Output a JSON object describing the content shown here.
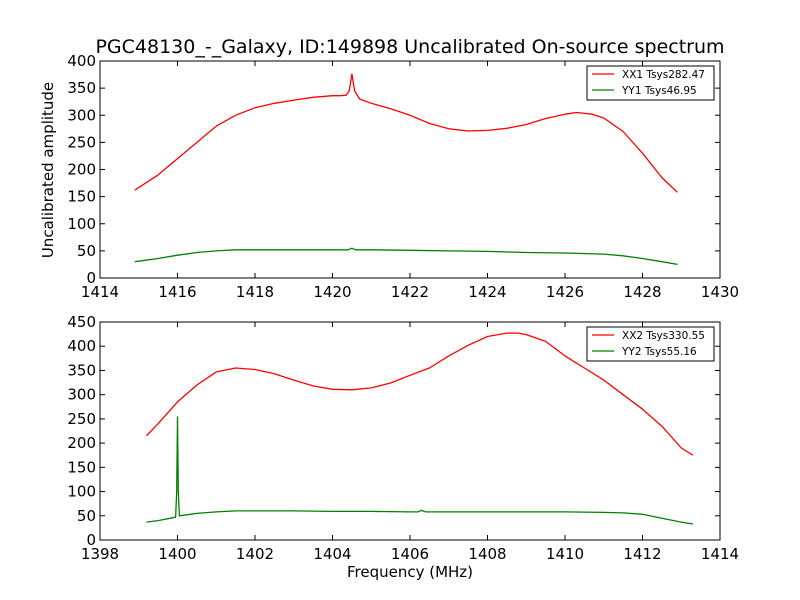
{
  "chart_data": [
    {
      "type": "line",
      "title": "PGC48130_-_Galaxy, ID:149898 Uncalibrated On-source spectrum",
      "xlabel": "",
      "ylabel": "Uncalibrated amplitude",
      "xlim": [
        1414,
        1430
      ],
      "ylim": [
        0,
        400
      ],
      "xticks": [
        "1414",
        "1416",
        "1418",
        "1420",
        "1422",
        "1424",
        "1426",
        "1428",
        "1430"
      ],
      "yticks": [
        "0",
        "50",
        "100",
        "150",
        "200",
        "250",
        "300",
        "350",
        "400"
      ],
      "legend_position": "top-right",
      "series": [
        {
          "name": "XX1 Tsys282.47",
          "color": "#ff0000",
          "points": [
            [
              1414.9,
              162
            ],
            [
              1415.5,
              190
            ],
            [
              1416,
              220
            ],
            [
              1416.5,
              250
            ],
            [
              1417,
              280
            ],
            [
              1417.5,
              300
            ],
            [
              1418,
              314
            ],
            [
              1418.5,
              322
            ],
            [
              1419,
              328
            ],
            [
              1419.5,
              333
            ],
            [
              1420,
              336
            ],
            [
              1420.2,
              336
            ],
            [
              1420.35,
              337
            ],
            [
              1420.43,
              345
            ],
            [
              1420.5,
              376
            ],
            [
              1420.57,
              345
            ],
            [
              1420.7,
              330
            ],
            [
              1421,
              322
            ],
            [
              1421.5,
              312
            ],
            [
              1422,
              300
            ],
            [
              1422.5,
              285
            ],
            [
              1423,
              275
            ],
            [
              1423.5,
              271
            ],
            [
              1424,
              272
            ],
            [
              1424.5,
              276
            ],
            [
              1425,
              283
            ],
            [
              1425.5,
              294
            ],
            [
              1426,
              302
            ],
            [
              1426.3,
              305
            ],
            [
              1426.7,
              302
            ],
            [
              1427,
              295
            ],
            [
              1427.5,
              270
            ],
            [
              1428,
              230
            ],
            [
              1428.5,
              185
            ],
            [
              1428.9,
              158
            ]
          ]
        },
        {
          "name": "YY1 Tsys46.95",
          "color": "#008000",
          "points": [
            [
              1414.9,
              30
            ],
            [
              1415.5,
              36
            ],
            [
              1416,
              42
            ],
            [
              1416.5,
              47
            ],
            [
              1417,
              50
            ],
            [
              1417.5,
              52
            ],
            [
              1418,
              52
            ],
            [
              1419,
              52
            ],
            [
              1420,
              52
            ],
            [
              1420.4,
              52
            ],
            [
              1420.5,
              55
            ],
            [
              1420.6,
              52
            ],
            [
              1421,
              52
            ],
            [
              1422,
              51
            ],
            [
              1423,
              50
            ],
            [
              1424,
              49
            ],
            [
              1425,
              47
            ],
            [
              1426,
              46
            ],
            [
              1427,
              44
            ],
            [
              1427.5,
              41
            ],
            [
              1428,
              36
            ],
            [
              1428.5,
              30
            ],
            [
              1428.9,
              25
            ]
          ]
        }
      ]
    },
    {
      "type": "line",
      "title": "",
      "xlabel": "Frequency (MHz)",
      "ylabel": "",
      "xlim": [
        1398,
        1414
      ],
      "ylim": [
        0,
        450
      ],
      "xticks": [
        "1398",
        "1400",
        "1402",
        "1404",
        "1406",
        "1408",
        "1410",
        "1412",
        "1414"
      ],
      "yticks": [
        "0",
        "50",
        "100",
        "150",
        "200",
        "250",
        "300",
        "350",
        "400",
        "450"
      ],
      "legend_position": "top-right",
      "series": [
        {
          "name": "XX2 Tsys330.55",
          "color": "#ff0000",
          "points": [
            [
              1399.2,
              215
            ],
            [
              1399.5,
              240
            ],
            [
              1400,
              285
            ],
            [
              1400.5,
              320
            ],
            [
              1401,
              347
            ],
            [
              1401.5,
              355
            ],
            [
              1402,
              352
            ],
            [
              1402.5,
              343
            ],
            [
              1403,
              330
            ],
            [
              1403.5,
              318
            ],
            [
              1404,
              311
            ],
            [
              1404.5,
              310
            ],
            [
              1405,
              314
            ],
            [
              1405.5,
              324
            ],
            [
              1406,
              340
            ],
            [
              1406.5,
              355
            ],
            [
              1407,
              380
            ],
            [
              1407.5,
              402
            ],
            [
              1408,
              420
            ],
            [
              1408.5,
              427
            ],
            [
              1408.8,
              427
            ],
            [
              1409,
              424
            ],
            [
              1409.5,
              410
            ],
            [
              1410,
              380
            ],
            [
              1410.5,
              355
            ],
            [
              1411,
              330
            ],
            [
              1411.5,
              300
            ],
            [
              1412,
              270
            ],
            [
              1412.5,
              235
            ],
            [
              1413,
              190
            ],
            [
              1413.3,
              175
            ]
          ]
        },
        {
          "name": "YY2 Tsys55.16",
          "color": "#008000",
          "points": [
            [
              1399.2,
              37
            ],
            [
              1399.5,
              40
            ],
            [
              1399.95,
              47
            ],
            [
              1399.98,
              100
            ],
            [
              1400,
              254
            ],
            [
              1400.02,
              100
            ],
            [
              1400.05,
              50
            ],
            [
              1400.5,
              55
            ],
            [
              1401,
              58
            ],
            [
              1401.5,
              60
            ],
            [
              1402,
              60
            ],
            [
              1403,
              60
            ],
            [
              1404,
              59
            ],
            [
              1405,
              59
            ],
            [
              1406,
              58
            ],
            [
              1406.2,
              58
            ],
            [
              1406.3,
              61
            ],
            [
              1406.4,
              58
            ],
            [
              1407,
              58
            ],
            [
              1408,
              58
            ],
            [
              1409,
              58
            ],
            [
              1410,
              58
            ],
            [
              1411,
              57
            ],
            [
              1411.5,
              56
            ],
            [
              1412,
              53
            ],
            [
              1412.5,
              45
            ],
            [
              1413,
              37
            ],
            [
              1413.3,
              33
            ]
          ]
        }
      ]
    }
  ]
}
